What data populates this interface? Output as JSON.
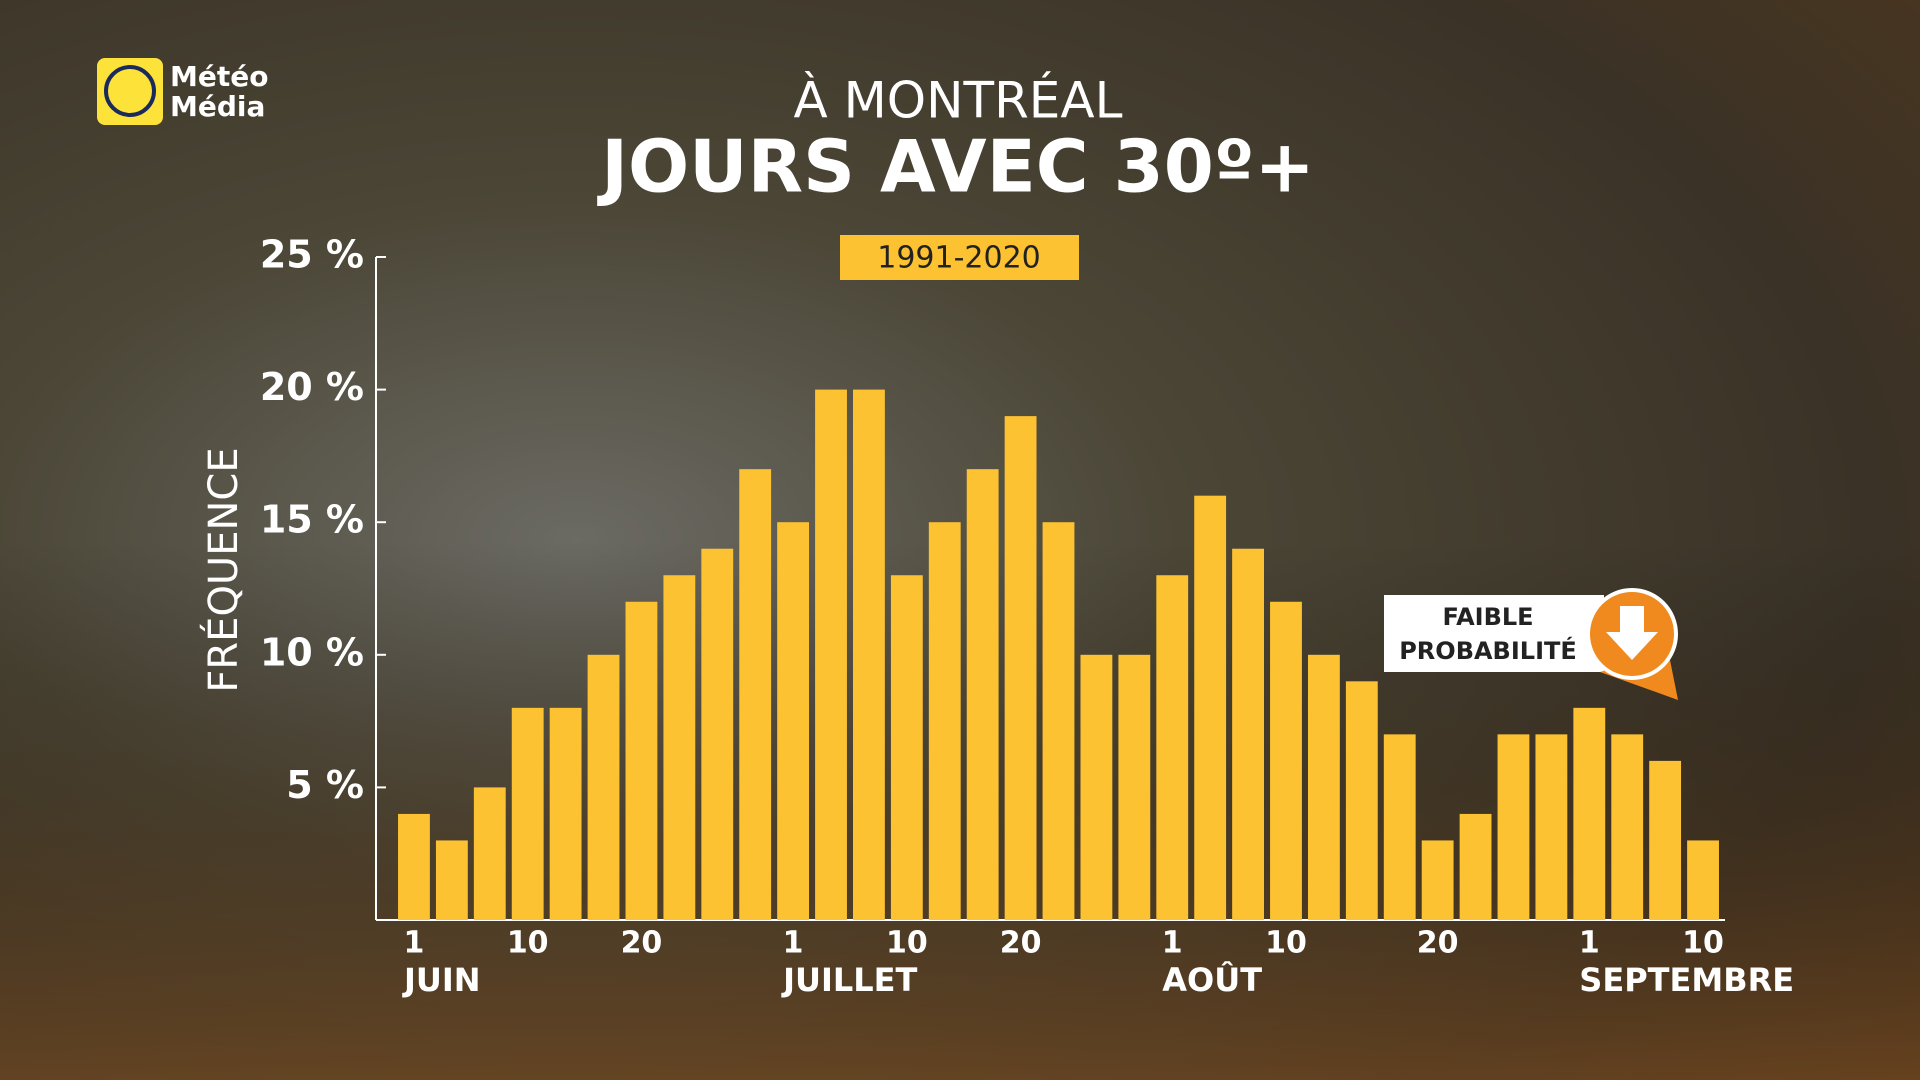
{
  "brand": [
    "Météo",
    "Média"
  ],
  "chart_data": {
    "type": "bar",
    "subtitle": "À MONTRÉAL",
    "title": "JOURS AVEC 30º+",
    "period": "1991-2020",
    "y_label": "FRÉQUENCE",
    "categories": [
      "1",
      null,
      null,
      "10",
      null,
      null,
      "20",
      null,
      null,
      null,
      "1",
      null,
      null,
      "10",
      null,
      null,
      "20",
      null,
      null,
      null,
      "1",
      null,
      null,
      "10",
      null,
      null,
      null,
      "20",
      null,
      null,
      null,
      "1",
      null,
      null,
      "10"
    ],
    "month_labels": [
      "JUIN",
      null,
      null,
      null,
      null,
      null,
      null,
      null,
      null,
      null,
      "JUILLET",
      null,
      null,
      null,
      null,
      null,
      null,
      null,
      null,
      null,
      "AOÛT",
      null,
      null,
      null,
      null,
      null,
      null,
      null,
      null,
      null,
      null,
      "SEPTEMBRE",
      null,
      null,
      null
    ],
    "values": [
      4,
      3,
      5,
      8,
      8,
      10,
      12,
      13,
      14,
      17,
      15,
      20,
      20,
      13,
      15,
      17,
      19,
      15,
      10,
      10,
      13,
      16,
      14,
      12,
      10,
      9,
      7,
      3,
      4,
      7,
      7,
      8,
      7,
      6,
      3
    ],
    "color": "#fdc232",
    "ylim": [
      0,
      25
    ],
    "yticks": [
      {
        "value": 5,
        "label": "5 %"
      },
      {
        "value": 10,
        "label": "10 %"
      },
      {
        "value": 15,
        "label": "15 %"
      },
      {
        "value": 20,
        "label": "20 %"
      },
      {
        "value": 25,
        "label": "25 %"
      }
    ],
    "annotation": [
      "FAIBLE",
      "PROBABILITÉ"
    ]
  }
}
